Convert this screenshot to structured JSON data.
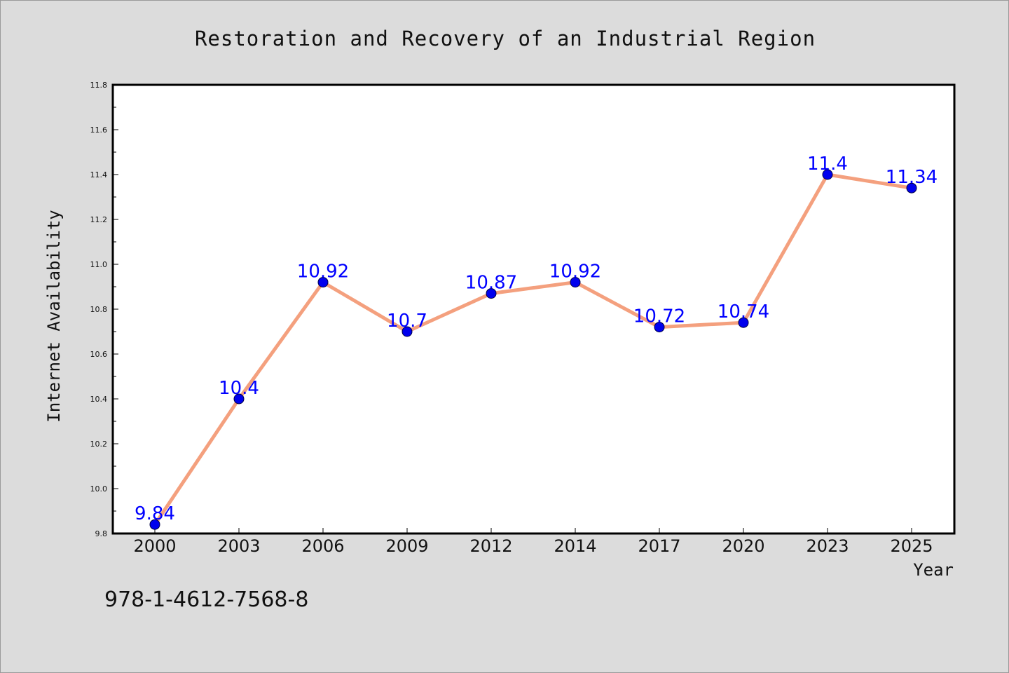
{
  "chart_data": {
    "type": "line",
    "title": "Restoration and Recovery of an Industrial Region",
    "xlabel": "Year",
    "ylabel": "Internet Availability",
    "categories": [
      "2000",
      "2003",
      "2006",
      "2009",
      "2012",
      "2014",
      "2017",
      "2020",
      "2023",
      "2025"
    ],
    "series": [
      {
        "values": [
          9.84,
          10.4,
          10.92,
          10.7,
          10.87,
          10.92,
          10.72,
          10.74,
          11.4,
          11.34
        ],
        "labels": [
          "9.84",
          "10.4",
          "10.92",
          "10.7",
          "10.87",
          "10.92",
          "10.72",
          "10.74",
          "11.4",
          "11.34"
        ],
        "line_color": "#f4a07e",
        "marker_color": "#0000ee",
        "label_color": "#0000ff"
      }
    ],
    "ylim": [
      9.8,
      11.8
    ],
    "yticks": [
      "9.8",
      "10.0",
      "10.2",
      "10.4",
      "10.6",
      "10.8",
      "11.0",
      "11.2",
      "11.4",
      "11.6",
      "11.8"
    ],
    "grid": false,
    "legend": "none"
  },
  "caption": "978-1-4612-7568-8",
  "colors": {
    "background": "#dcdcdc",
    "plot_background": "#ffffff"
  }
}
